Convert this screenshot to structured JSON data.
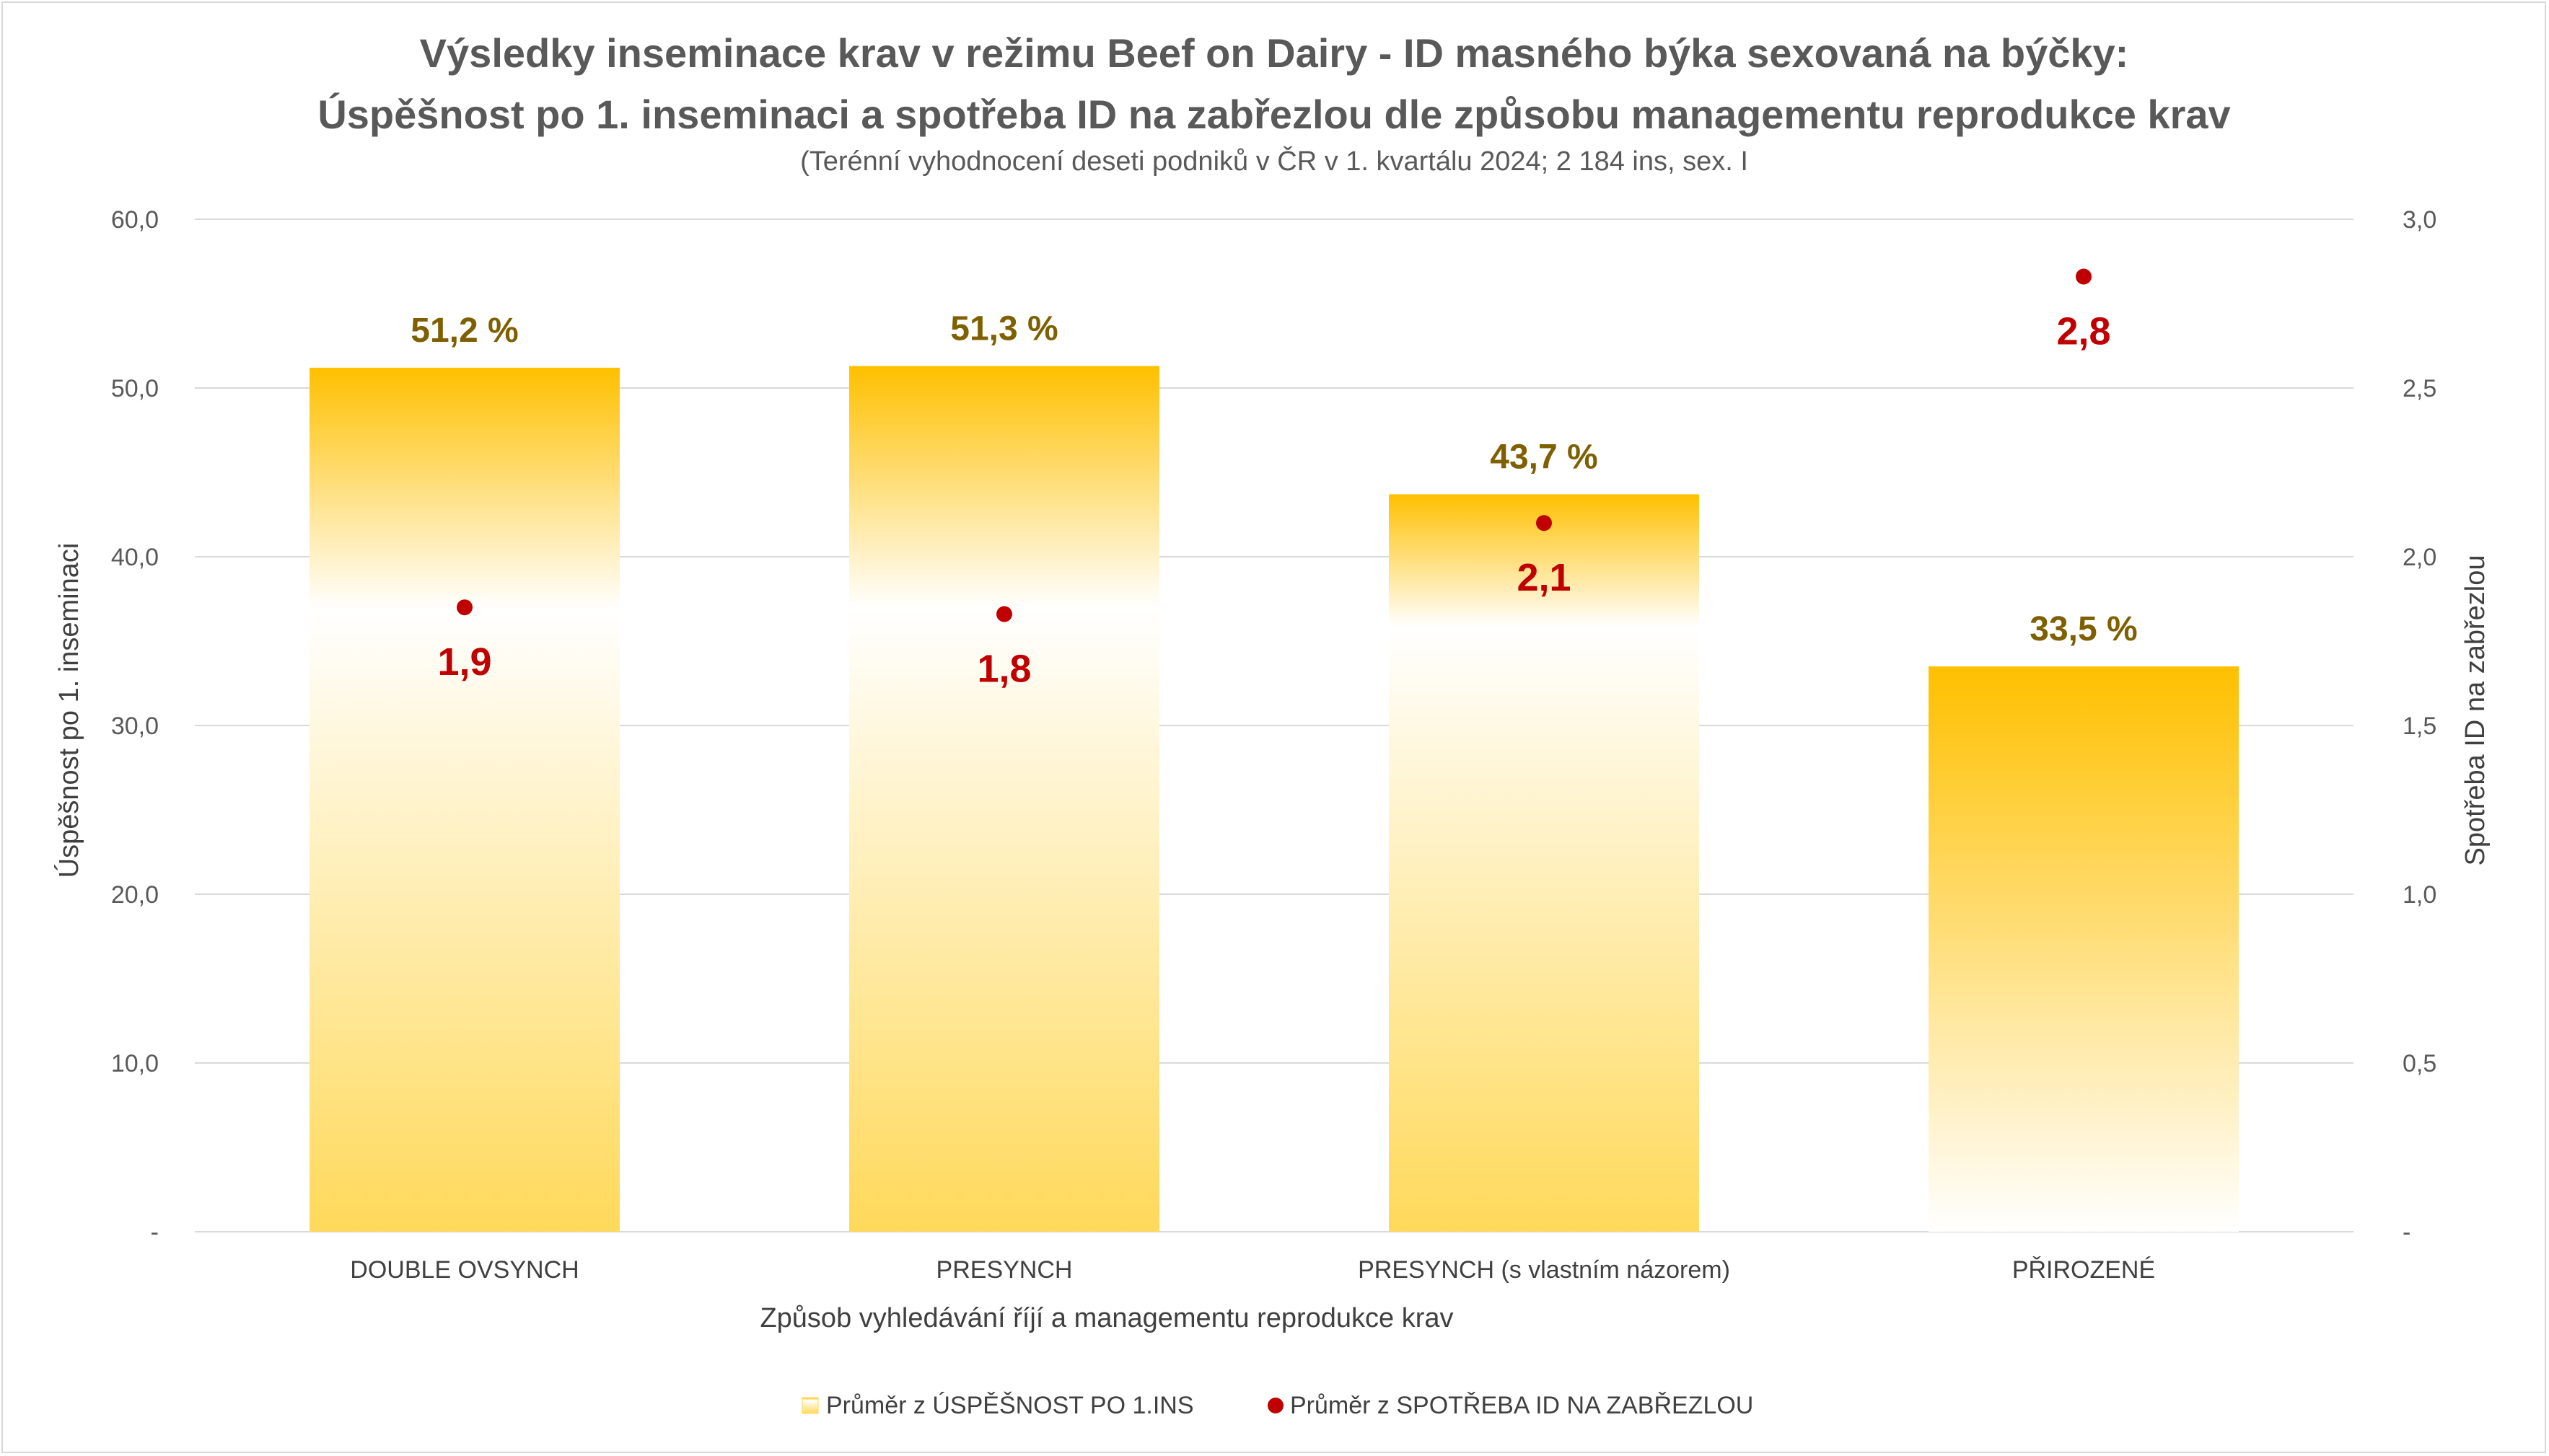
{
  "chart_data": {
    "type": "bar",
    "title_line1": "Výsledky inseminace krav v režimu Beef on Dairy - ID masného býka sexovaná na býčky:",
    "title_line2": "Úspěšnost po 1. inseminaci a spotřeba ID na zabřezlou dle způsobu managementu reprodukce krav",
    "subtitle": "(Terénní vyhodnocení deseti podniků v ČR v 1. kvartálu 2024; 2 184 ins, sex. I",
    "xlabel": "Způsob vyhledávání říjí a managementu reprodukce krav",
    "ylabel": "Úspěšnost po 1. inseminaci",
    "y2label": "Spotřeba ID na zabřezlou",
    "categories": [
      "DOUBLE OVSYNCH",
      "PRESYNCH",
      "PRESYNCH (s vlastním názorem)",
      "PŘIROZENÉ"
    ],
    "ylim": [
      0,
      60
    ],
    "y2lim": [
      0,
      3
    ],
    "y_ticks": [
      "-",
      "10,0",
      "20,0",
      "30,0",
      "40,0",
      "50,0",
      "60,0"
    ],
    "y2_ticks": [
      "-",
      "0,5",
      "1,0",
      "1,5",
      "2,0",
      "2,5",
      "3,0"
    ],
    "grid": true,
    "legend_position": "bottom",
    "series": [
      {
        "name": "Průměr z ÚSPĚŠNOST PO 1.INS",
        "type": "bar",
        "axis": "left",
        "values": [
          51.2,
          51.3,
          43.7,
          33.5
        ],
        "labels": [
          "51,2  %",
          "51,3 %",
          "43,7 %",
          "33,5 %"
        ],
        "color": "#FFC000",
        "label_color": "#7F6000"
      },
      {
        "name": "Průměr z SPOTŘEBA ID NA ZABŘEZLOU",
        "type": "scatter",
        "axis": "right",
        "values": [
          1.85,
          1.83,
          2.1,
          2.83
        ],
        "labels": [
          "1,9",
          "1,8",
          "2,1",
          "2,8"
        ],
        "color": "#C00000",
        "label_color": "#C00000"
      }
    ]
  }
}
